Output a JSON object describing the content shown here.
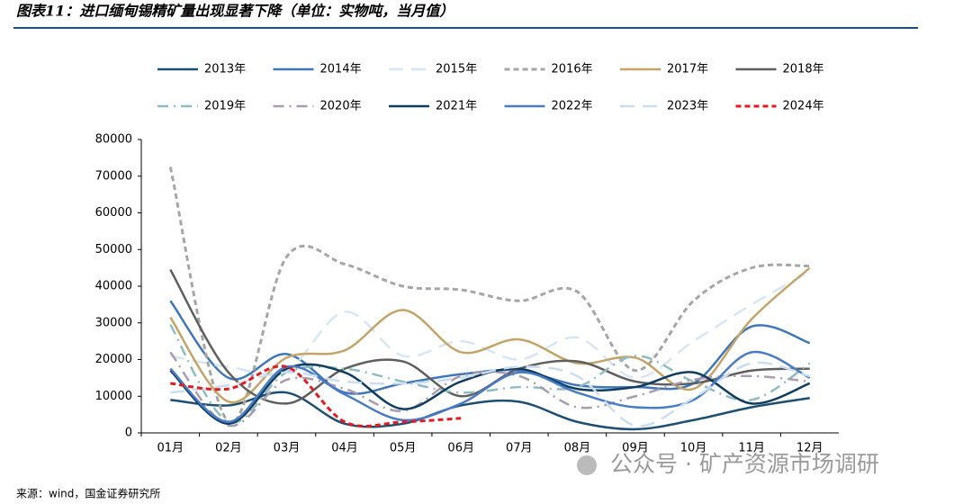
{
  "chart_data": {
    "type": "line",
    "title": "图表11：进口缅甸锡精矿量出现显著下降（单位：实物吨，当月值）",
    "source": "来源：wind，国金证券研究所",
    "watermark": "公众号 · 矿产资源市场调研",
    "categories": [
      "01月",
      "02月",
      "03月",
      "04月",
      "05月",
      "06月",
      "07月",
      "08月",
      "09月",
      "10月",
      "11月",
      "12月"
    ],
    "ylim": [
      0,
      80000
    ],
    "yticks": [
      0,
      10000,
      20000,
      30000,
      40000,
      50000,
      60000,
      70000,
      80000
    ],
    "smooth": true,
    "series": [
      {
        "name": "2013年",
        "color": "#1d4f73",
        "dash": "solid",
        "values": [
          9000,
          7500,
          11000,
          2500,
          2500,
          7500,
          8500,
          3000,
          1000,
          3500,
          7000,
          9500
        ]
      },
      {
        "name": "2014年",
        "color": "#3f76b8",
        "dash": "solid",
        "values": [
          36000,
          15000,
          21500,
          11000,
          13500,
          16000,
          17000,
          13000,
          12500,
          13500,
          29000,
          24500
        ]
      },
      {
        "name": "2015年",
        "color": "#d6e6f4",
        "dash": "dashed",
        "values": [
          21000,
          18000,
          17000,
          33000,
          21000,
          25000,
          20000,
          26000,
          15000,
          25000,
          35000,
          44000
        ]
      },
      {
        "name": "2016年",
        "color": "#a6a6a6",
        "dash": "dotted",
        "values": [
          72500,
          3000,
          48000,
          46000,
          40000,
          39000,
          36000,
          38500,
          17000,
          36000,
          45000,
          45500
        ]
      },
      {
        "name": "2017年",
        "color": "#c4a468",
        "dash": "solid",
        "values": [
          31500,
          8500,
          20500,
          22500,
          33500,
          22000,
          25500,
          19000,
          20500,
          12000,
          31000,
          45000
        ]
      },
      {
        "name": "2018年",
        "color": "#5f5f5f",
        "dash": "solid",
        "values": [
          44500,
          16500,
          8000,
          17500,
          19500,
          10000,
          17500,
          19500,
          14000,
          13500,
          17000,
          17500
        ]
      },
      {
        "name": "2019年",
        "color": "#8fbcc2",
        "dash": "dashdot",
        "values": [
          29500,
          3000,
          16500,
          17500,
          14000,
          11000,
          12500,
          12500,
          21000,
          14000,
          9000,
          19000
        ]
      },
      {
        "name": "2020年",
        "color": "#a99cb0",
        "dash": "dashdot",
        "values": [
          22000,
          2000,
          14500,
          12000,
          6000,
          15500,
          15500,
          7000,
          10000,
          14500,
          15500,
          14000
        ]
      },
      {
        "name": "2021年",
        "color": "#0f3d60",
        "dash": "solid",
        "values": [
          17000,
          2500,
          17500,
          16500,
          6500,
          14000,
          17500,
          12000,
          12500,
          16500,
          8000,
          13500
        ]
      },
      {
        "name": "2022年",
        "color": "#4a7cc6",
        "dash": "solid",
        "values": [
          17500,
          3000,
          18000,
          10500,
          3500,
          8000,
          16500,
          11000,
          7000,
          9000,
          22000,
          15000
        ]
      },
      {
        "name": "2023年",
        "color": "#c9def0",
        "dash": "dashed",
        "values": [
          11000,
          13000,
          16500,
          14000,
          13500,
          15000,
          18000,
          15500,
          2000,
          9500,
          19000,
          15500
        ]
      },
      {
        "name": "2024年",
        "color": "#e8191e",
        "dash": "dotted",
        "values": [
          13500,
          12000,
          18000,
          3000,
          3000,
          4000,
          null,
          null,
          null,
          null,
          null,
          null
        ]
      }
    ]
  }
}
